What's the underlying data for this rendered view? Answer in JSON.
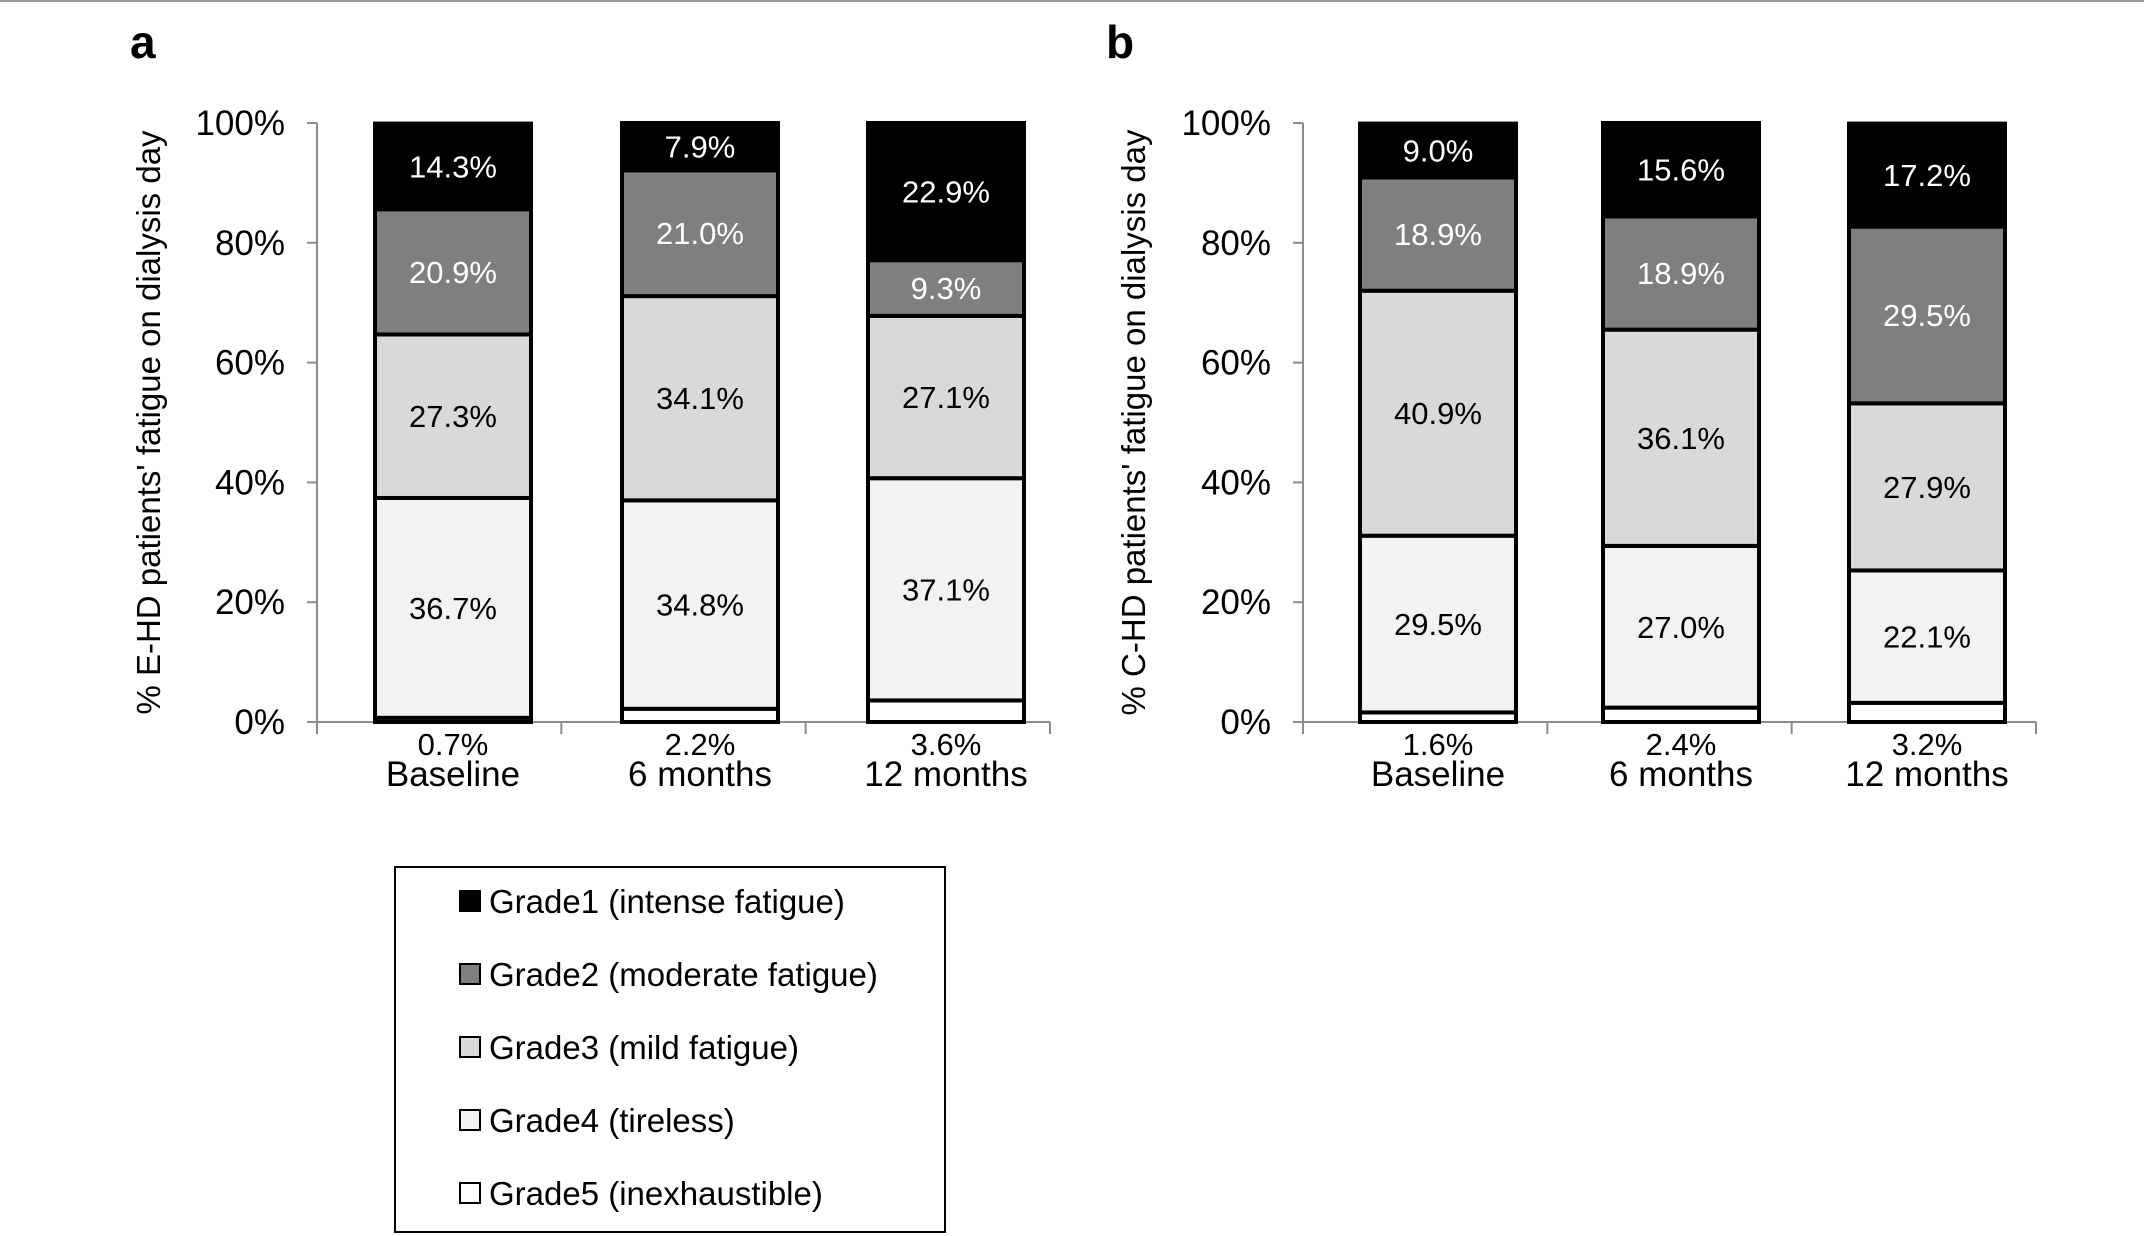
{
  "figure": {
    "panels": [
      {
        "letter": "a"
      },
      {
        "letter": "b"
      }
    ]
  },
  "legend": {
    "items": [
      {
        "label": "Grade1 (intense fatigue)",
        "color": "#000000"
      },
      {
        "label": "Grade2 (moderate fatigue)",
        "color": "#7f7f7f"
      },
      {
        "label": "Grade3 (mild fatigue)",
        "color": "#d9d9d9"
      },
      {
        "label": "Grade4 (tireless)",
        "color": "#f2f2f2"
      },
      {
        "label": "Grade5 (inexhaustible)",
        "color": "#ffffff"
      }
    ]
  },
  "chart_data": [
    {
      "type": "bar",
      "stacked": true,
      "panel": "a",
      "title": "",
      "xlabel": "",
      "ylabel": "% E-HD patients' fatigue on dialysis day",
      "ylim": [
        0,
        100
      ],
      "yticks": [
        "0%",
        "20%",
        "40%",
        "60%",
        "80%",
        "100%"
      ],
      "categories": [
        "Baseline",
        "6 months",
        "12 months"
      ],
      "series": [
        {
          "name": "Grade5 (inexhaustible)",
          "values": [
            0.7,
            2.2,
            3.6
          ],
          "labels": [
            "0.7%",
            "2.2%",
            "3.6%"
          ]
        },
        {
          "name": "Grade4 (tireless)",
          "values": [
            36.7,
            34.8,
            37.1
          ],
          "labels": [
            "36.7%",
            "34.8%",
            "37.1%"
          ]
        },
        {
          "name": "Grade3 (mild fatigue)",
          "values": [
            27.3,
            34.1,
            27.1
          ],
          "labels": [
            "27.3%",
            "34.1%",
            "27.1%"
          ]
        },
        {
          "name": "Grade2 (moderate fatigue)",
          "values": [
            20.9,
            21.0,
            9.3
          ],
          "labels": [
            "20.9%",
            "21.0%",
            "9.3%"
          ]
        },
        {
          "name": "Grade1 (intense fatigue)",
          "values": [
            14.3,
            7.9,
            22.9
          ],
          "labels": [
            "14.3%",
            "7.9%",
            "22.9%"
          ]
        }
      ]
    },
    {
      "type": "bar",
      "stacked": true,
      "panel": "b",
      "title": "",
      "xlabel": "",
      "ylabel": "% C-HD patients' fatigue on dialysis day",
      "ylim": [
        0,
        100
      ],
      "yticks": [
        "0%",
        "20%",
        "40%",
        "60%",
        "80%",
        "100%"
      ],
      "categories": [
        "Baseline",
        "6 months",
        "12 months"
      ],
      "series": [
        {
          "name": "Grade5 (inexhaustible)",
          "values": [
            1.6,
            2.4,
            3.2
          ],
          "labels": [
            "1.6%",
            "2.4%",
            "3.2%"
          ]
        },
        {
          "name": "Grade4 (tireless)",
          "values": [
            29.5,
            27.0,
            22.1
          ],
          "labels": [
            "29.5%",
            "27.0%",
            "22.1%"
          ]
        },
        {
          "name": "Grade3 (mild fatigue)",
          "values": [
            40.9,
            36.1,
            27.9
          ],
          "labels": [
            "40.9%",
            "36.1%",
            "27.9%"
          ]
        },
        {
          "name": "Grade2 (moderate fatigue)",
          "values": [
            18.9,
            18.9,
            29.5
          ],
          "labels": [
            "18.9%",
            "18.9%",
            "29.5%"
          ]
        },
        {
          "name": "Grade1 (intense fatigue)",
          "values": [
            9.0,
            15.6,
            17.2
          ],
          "labels": [
            "9.0%",
            "15.6%",
            "17.2%"
          ]
        }
      ]
    }
  ]
}
